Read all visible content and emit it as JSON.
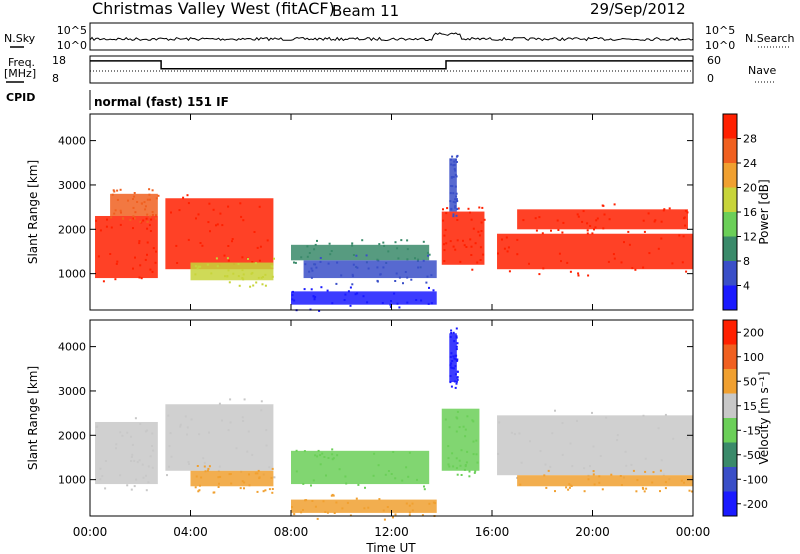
{
  "header": {
    "title": "Christmas Valley West (fitACF)",
    "beam": "Beam 11",
    "date": "29/Sep/2012"
  },
  "chart_data": [
    {
      "type": "line",
      "panel": "noise",
      "left_label": "N.Sky",
      "right_label": "N.Search",
      "left_ticks": [
        "10^5",
        "10^0"
      ],
      "right_ticks": [
        "10^5",
        "10^0"
      ]
    },
    {
      "type": "line",
      "panel": "frequency",
      "left_label_lines": [
        "Freq.",
        "[MHz]"
      ],
      "right_label": "Nave",
      "left_ticks": [
        18,
        8
      ],
      "right_ticks": [
        60,
        0
      ],
      "freq_segments": [
        {
          "x0": 0.0,
          "x1": 2.83,
          "y": 16.2
        },
        {
          "x0": 2.83,
          "x1": 14.17,
          "y": 13.3
        },
        {
          "x0": 14.17,
          "x1": 24.0,
          "y": 16.2
        }
      ]
    },
    {
      "type": "text",
      "panel": "cpid",
      "label": "CPID",
      "value": "normal (fast) 151 IF"
    },
    {
      "type": "heatmap",
      "panel": "power",
      "ylabel": "Slant Range [km]",
      "ylim": [
        180,
        4600
      ],
      "yticks": [
        1000,
        2000,
        3000,
        4000
      ],
      "xlim": [
        0,
        24
      ],
      "colorbar": {
        "label": "Power [dB]",
        "ticks": [
          4,
          8,
          12,
          16,
          20,
          24,
          28
        ],
        "colors": [
          "#1a1aff",
          "#3a4fc8",
          "#3a8a6a",
          "#6bcf58",
          "#c7d43a",
          "#f0a030",
          "#f06020",
          "#ff2000"
        ]
      },
      "echo_regions": [
        {
          "x0": 0.2,
          "x1": 2.7,
          "y0": 900,
          "y1": 2300,
          "color": "#ff2000"
        },
        {
          "x0": 0.8,
          "x1": 2.7,
          "y0": 2300,
          "y1": 2800,
          "color": "#f06020"
        },
        {
          "x0": 3.0,
          "x1": 7.3,
          "y0": 1100,
          "y1": 2700,
          "color": "#ff2000"
        },
        {
          "x0": 4.0,
          "x1": 7.3,
          "y0": 850,
          "y1": 1250,
          "color": "#c7d43a"
        },
        {
          "x0": 8.0,
          "x1": 13.5,
          "y0": 1300,
          "y1": 1650,
          "color": "#3a8a6a"
        },
        {
          "x0": 8.5,
          "x1": 13.8,
          "y0": 900,
          "y1": 1300,
          "color": "#3a4fc8"
        },
        {
          "x0": 8.0,
          "x1": 13.8,
          "y0": 300,
          "y1": 600,
          "color": "#1a1aff"
        },
        {
          "x0": 14.0,
          "x1": 15.7,
          "y0": 1200,
          "y1": 2400,
          "color": "#ff2000"
        },
        {
          "x0": 14.3,
          "x1": 14.6,
          "y0": 2400,
          "y1": 3600,
          "color": "#3a4fc8"
        },
        {
          "x0": 16.2,
          "x1": 24.0,
          "y0": 1100,
          "y1": 1900,
          "color": "#ff2000"
        },
        {
          "x0": 17.0,
          "x1": 23.8,
          "y0": 2000,
          "y1": 2450,
          "color": "#ff2000"
        }
      ]
    },
    {
      "type": "heatmap",
      "panel": "velocity",
      "ylabel": "Slant Range [km]",
      "ylim": [
        180,
        4600
      ],
      "yticks": [
        1000,
        2000,
        3000,
        4000
      ],
      "xlim": [
        0,
        24
      ],
      "xticks": [
        "00:00",
        "04:00",
        "08:00",
        "12:00",
        "16:00",
        "20:00",
        "00:00"
      ],
      "xlabel": "Time UT",
      "colorbar": {
        "label": "Velocity [m s⁻¹]",
        "ticks": [
          200,
          100,
          50,
          15,
          -15,
          -50,
          -100,
          -200
        ],
        "colors": [
          "#1a1aff",
          "#3a4fc8",
          "#3a8a6a",
          "#6bcf58",
          "#c8c8c8",
          "#f0a030",
          "#f06020",
          "#ff2000"
        ]
      },
      "echo_regions": [
        {
          "x0": 0.2,
          "x1": 2.7,
          "y0": 900,
          "y1": 2300,
          "color": "#c8c8c8"
        },
        {
          "x0": 3.0,
          "x1": 7.3,
          "y0": 1200,
          "y1": 2700,
          "color": "#c8c8c8"
        },
        {
          "x0": 4.0,
          "x1": 7.3,
          "y0": 850,
          "y1": 1200,
          "color": "#f0a030"
        },
        {
          "x0": 8.0,
          "x1": 13.5,
          "y0": 900,
          "y1": 1650,
          "color": "#6bcf58"
        },
        {
          "x0": 8.0,
          "x1": 13.8,
          "y0": 250,
          "y1": 550,
          "color": "#f0a030"
        },
        {
          "x0": 14.0,
          "x1": 15.5,
          "y0": 1200,
          "y1": 2600,
          "color": "#6bcf58"
        },
        {
          "x0": 14.3,
          "x1": 14.6,
          "y0": 3200,
          "y1": 4300,
          "color": "#1a1aff"
        },
        {
          "x0": 16.2,
          "x1": 24.0,
          "y0": 1100,
          "y1": 2450,
          "color": "#c8c8c8"
        },
        {
          "x0": 17.0,
          "x1": 24.0,
          "y0": 850,
          "y1": 1100,
          "color": "#f0a030"
        }
      ]
    }
  ]
}
